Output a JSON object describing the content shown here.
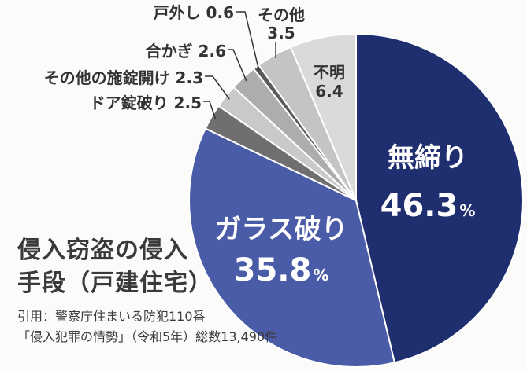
{
  "chart_data": {
    "type": "pie",
    "title_lines": [
      "侵入窃盗の侵入",
      "手段（戸建住宅）"
    ],
    "unit": "%",
    "slices": [
      {
        "label": "無締り",
        "value": 46.3,
        "color": "#1e2e6e",
        "text_color": "#ffffff",
        "label_style": "inside-large"
      },
      {
        "label": "ガラス破り",
        "value": 35.8,
        "color": "#4a5ba8",
        "text_color": "#ffffff",
        "label_style": "inside-large"
      },
      {
        "label": "ドア錠破り",
        "value": 2.5,
        "color": "#6f6f6f",
        "text_color": "#333333",
        "label_style": "outside"
      },
      {
        "label": "その他の施錠開け",
        "value": 2.3,
        "color": "#c9c9c9",
        "text_color": "#333333",
        "label_style": "outside"
      },
      {
        "label": "合かぎ",
        "value": 2.6,
        "color": "#adadad",
        "text_color": "#333333",
        "label_style": "outside"
      },
      {
        "label": "戸外し",
        "value": 0.6,
        "color": "#5a5a5a",
        "text_color": "#333333",
        "label_style": "outside"
      },
      {
        "label": "その他",
        "value": 3.5,
        "color": "#c4c4c4",
        "text_color": "#333333",
        "label_style": "outside-stacked"
      },
      {
        "label": "不明",
        "value": 6.4,
        "color": "#dadada",
        "text_color": "#333333",
        "label_style": "inside-small"
      }
    ]
  },
  "source": {
    "line1": "引用：警察庁住まいる防犯110番",
    "line2": "「侵入犯罪の情勢」（令和5年）総数13,490件"
  }
}
